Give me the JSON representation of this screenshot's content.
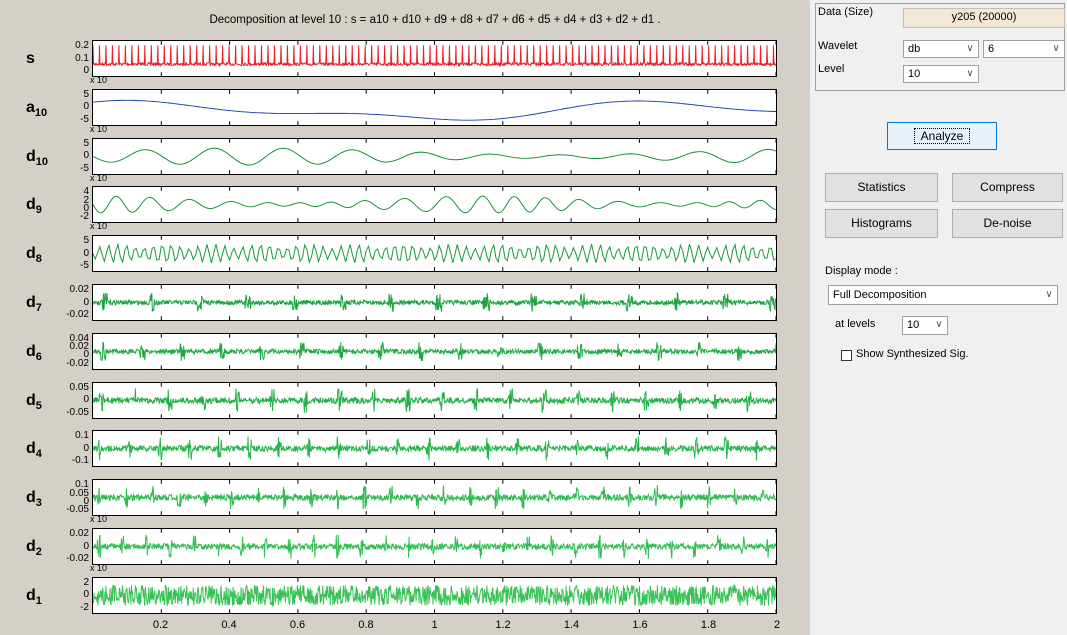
{
  "plot": {
    "title": "Decomposition at level 10 : s = a10 + d10 + d9 + d8 + d7 + d6 + d5 + d4 + d3 + d2 + d1 .",
    "x_ticks": [
      "0.2",
      "0.4",
      "0.6",
      "0.8",
      "1",
      "1.2",
      "1.4",
      "1.6",
      "1.8",
      "2"
    ],
    "exp_label": "x 10",
    "signals": [
      {
        "name": "s",
        "sub": "",
        "color": "#e8212a",
        "yticks": [
          "0.2",
          "0.1",
          "0"
        ],
        "exp": true
      },
      {
        "name": "a",
        "sub": "10",
        "color": "#1f3fa8",
        "yticks": [
          "5",
          "0",
          "-5"
        ],
        "exp": true
      },
      {
        "name": "d",
        "sub": "10",
        "color": "#108a32",
        "yticks": [
          "5",
          "0",
          "-5"
        ],
        "exp": true
      },
      {
        "name": "d",
        "sub": "9",
        "color": "#139236",
        "yticks": [
          "4",
          "2",
          "0",
          "-2"
        ],
        "exp": true
      },
      {
        "name": "d",
        "sub": "8",
        "color": "#169a3a",
        "yticks": [
          "5",
          "0",
          "-5"
        ],
        "exp": false
      },
      {
        "name": "d",
        "sub": "7",
        "color": "#1aa23e",
        "yticks": [
          "0.02",
          "0",
          "-0.02"
        ],
        "exp": false
      },
      {
        "name": "d",
        "sub": "6",
        "color": "#1eaa42",
        "yticks": [
          "0.04",
          "0.02",
          "0",
          "-0.02"
        ],
        "exp": false
      },
      {
        "name": "d",
        "sub": "5",
        "color": "#22b046",
        "yticks": [
          "0.05",
          "0",
          "-0.05"
        ],
        "exp": false
      },
      {
        "name": "d",
        "sub": "4",
        "color": "#26b54a",
        "yticks": [
          "0.1",
          "0",
          "-0.1"
        ],
        "exp": false
      },
      {
        "name": "d",
        "sub": "3",
        "color": "#2cba4e",
        "yticks": [
          "0.1",
          "0.05",
          "0",
          "-0.05"
        ],
        "exp": true
      },
      {
        "name": "d",
        "sub": "2",
        "color": "#32be52",
        "yticks": [
          "0.02",
          "0",
          "-0.02"
        ],
        "exp": true
      },
      {
        "name": "d",
        "sub": "1",
        "color": "#38c256",
        "yticks": [
          "2",
          "0",
          "-2"
        ],
        "exp": false
      }
    ]
  },
  "panel": {
    "data_size_label": "Data  (Size)",
    "data_size_value": "y205  (20000)",
    "wavelet_label": "Wavelet",
    "wavelet_family": "db",
    "wavelet_order": "6",
    "level_label": "Level",
    "level_value": "10",
    "analyze": "Analyze",
    "statistics": "Statistics",
    "compress": "Compress",
    "histograms": "Histograms",
    "denoise": "De-noise",
    "display_mode_label": "Display mode :",
    "display_mode_value": "Full Decomposition",
    "at_levels_label": "at levels",
    "at_levels_value": "10",
    "show_synth_label": "Show Synthesized Sig.",
    "show_synth_checked": false,
    "data_field_color": "#f3e7d6"
  }
}
